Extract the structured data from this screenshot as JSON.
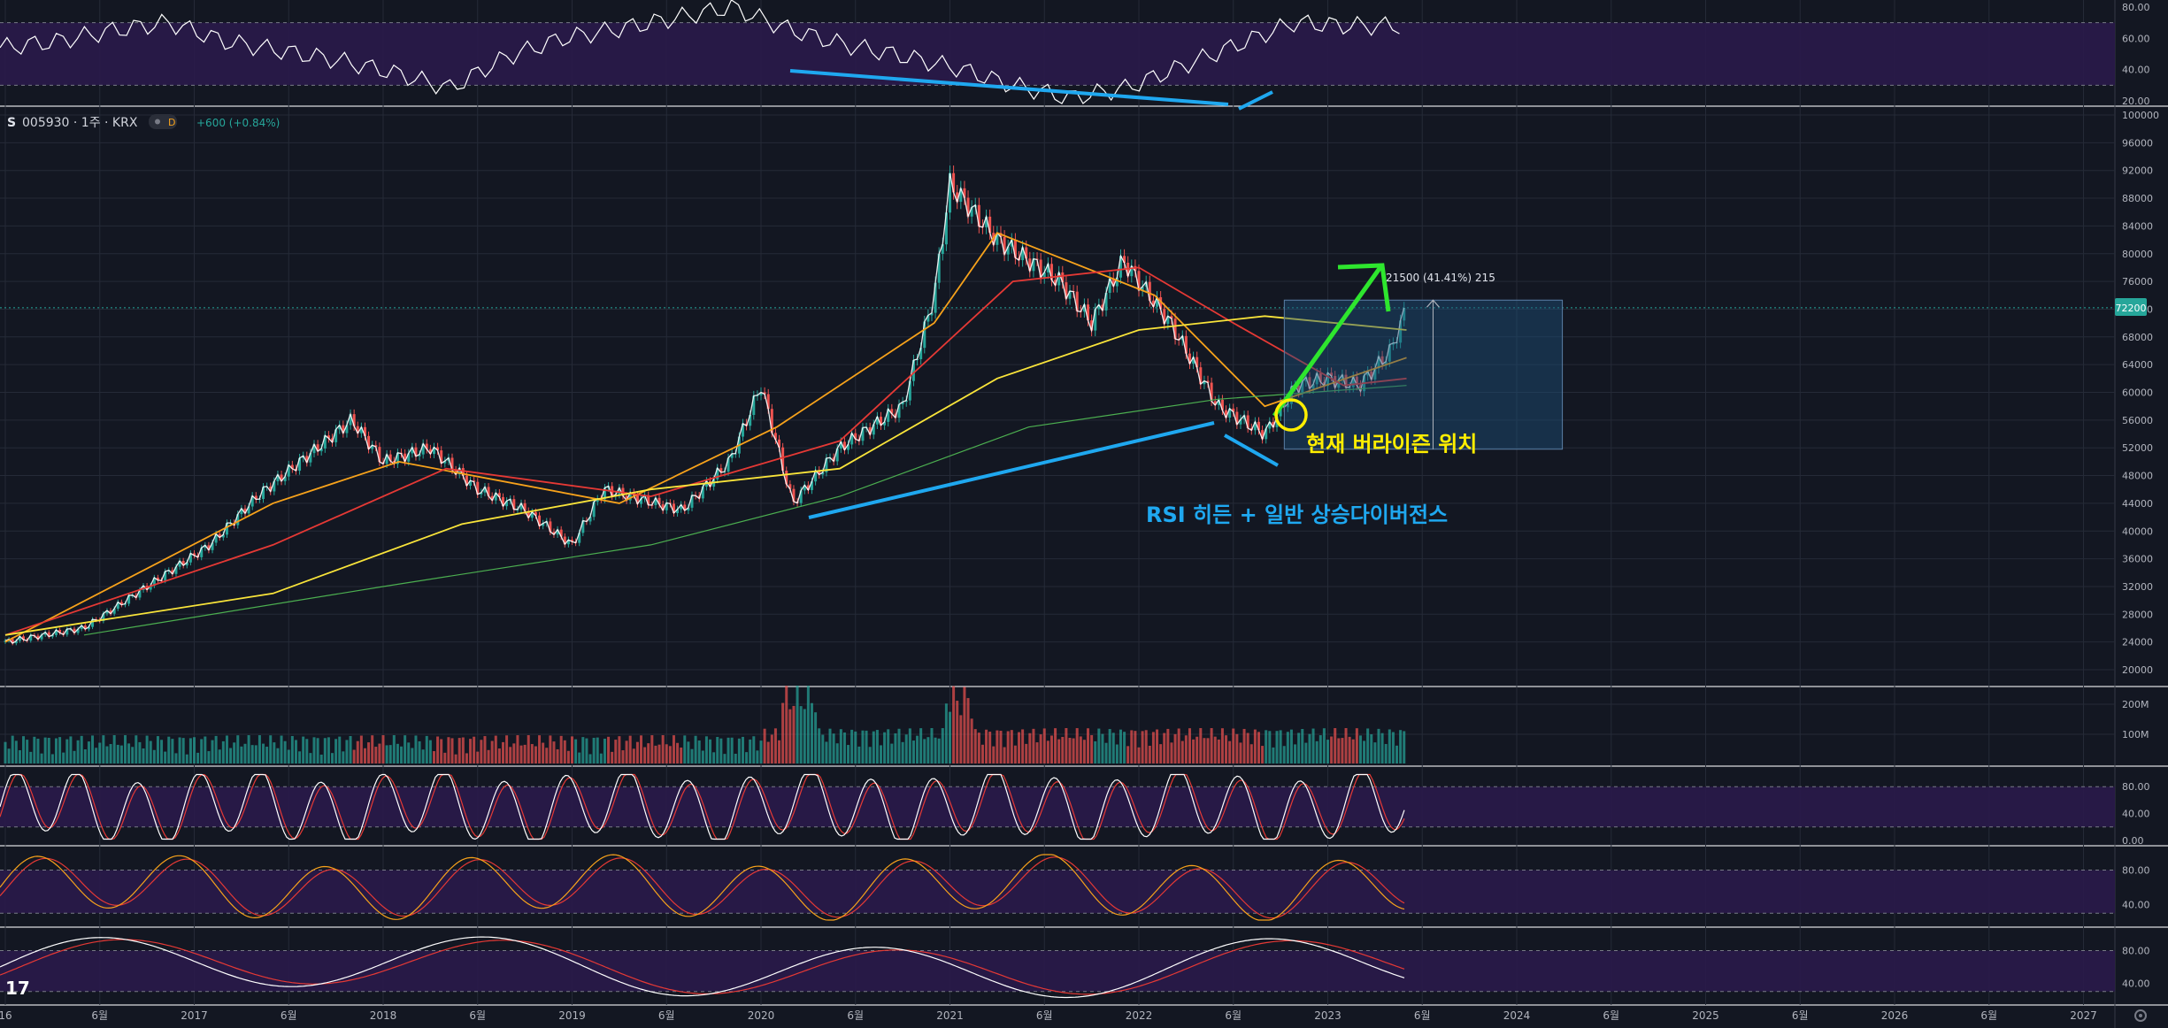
{
  "header": {
    "symbol_glyph": "S",
    "symbol": "005930 · 1주 · KRX",
    "badge": "D",
    "change": "+600 (+0.84%)"
  },
  "annotations": {
    "current_position": "현재 버라이즌 위치",
    "divergence": "RSI 히든 + 일반 상승다이버전스",
    "range_measure": "21500 (41.41%) 215"
  },
  "last_price_label": "72200",
  "logo": "17",
  "colors": {
    "background": "#131722",
    "grid": "#252a37",
    "pane_band": "#2a1a4a",
    "up": "#26a69a",
    "down": "#ef5350",
    "price_line": "#ffffff",
    "ma_orange": "#f7a21b",
    "ma_red": "#e53935",
    "ma_yellow": "#f9e43a",
    "ma_green": "#4caf50",
    "annotation_blue": "#1fa8f0",
    "annotation_green": "#2ee62e",
    "annotation_yellow": "#ffee00",
    "range_box": "#1d4f7a"
  },
  "chart_data": [
    {
      "type": "line",
      "pane": "rsi-top",
      "ylim": [
        20,
        80
      ],
      "y_ticks": [
        "80.00",
        "60.00",
        "40.00",
        "20.00"
      ],
      "series": [
        {
          "values": [
            54,
            58,
            65,
            70,
            58,
            52,
            46,
            38,
            28,
            48,
            60,
            66,
            73,
            80,
            66,
            56,
            49,
            41,
            30,
            22,
            28,
            42,
            56,
            70,
            68
          ]
        }
      ]
    },
    {
      "type": "candlestick",
      "pane": "price",
      "ylim": [
        20000,
        100000
      ],
      "y_ticks": [
        "100000",
        "96000",
        "92000",
        "88000",
        "84000",
        "80000",
        "76000",
        "72000",
        "68000",
        "64000",
        "60000",
        "56000",
        "52000",
        "48000",
        "44000",
        "40000",
        "36000",
        "32000",
        "28000",
        "24000",
        "20000"
      ],
      "x_labels": [
        "16",
        "6월",
        "2017",
        "6월",
        "2018",
        "6월",
        "2019",
        "6월",
        "2020",
        "6월",
        "2021",
        "6월",
        "2022",
        "6월",
        "2023",
        "6월",
        "2024",
        "6월",
        "2025",
        "6월",
        "2026",
        "6월",
        "2027"
      ],
      "last_price": 72200,
      "close": [
        {
          "date": "2016-01",
          "value": 24000
        },
        {
          "date": "2016-06",
          "value": 26000
        },
        {
          "date": "2016-10",
          "value": 32000
        },
        {
          "date": "2017-02",
          "value": 38000
        },
        {
          "date": "2017-05",
          "value": 45000
        },
        {
          "date": "2017-11",
          "value": 56000
        },
        {
          "date": "2018-01",
          "value": 50000
        },
        {
          "date": "2018-04",
          "value": 52000
        },
        {
          "date": "2018-07",
          "value": 46000
        },
        {
          "date": "2018-10",
          "value": 43000
        },
        {
          "date": "2019-01",
          "value": 38000
        },
        {
          "date": "2019-03",
          "value": 46000
        },
        {
          "date": "2019-08",
          "value": 43000
        },
        {
          "date": "2019-11",
          "value": 50000
        },
        {
          "date": "2020-01",
          "value": 61000
        },
        {
          "date": "2020-03",
          "value": 44000
        },
        {
          "date": "2020-06",
          "value": 52000
        },
        {
          "date": "2020-10",
          "value": 58000
        },
        {
          "date": "2020-12",
          "value": 74000
        },
        {
          "date": "2021-01",
          "value": 90000
        },
        {
          "date": "2021-04",
          "value": 82000
        },
        {
          "date": "2021-08",
          "value": 76000
        },
        {
          "date": "2021-10",
          "value": 70000
        },
        {
          "date": "2021-12",
          "value": 79000
        },
        {
          "date": "2022-03",
          "value": 70000
        },
        {
          "date": "2022-06",
          "value": 58000
        },
        {
          "date": "2022-09",
          "value": 54000
        },
        {
          "date": "2022-11",
          "value": 61000
        },
        {
          "date": "2023-01",
          "value": 62000
        },
        {
          "date": "2023-03",
          "value": 61000
        },
        {
          "date": "2023-05",
          "value": 66000
        },
        {
          "date": "2023-06",
          "value": 72200
        }
      ],
      "moving_averages": [
        {
          "color": "orange",
          "values": [
            {
              "date": "2016-01",
              "value": 24000
            },
            {
              "date": "2017-06",
              "value": 44000
            },
            {
              "date": "2018-02",
              "value": 50000
            },
            {
              "date": "2019-04",
              "value": 44000
            },
            {
              "date": "2020-02",
              "value": 55000
            },
            {
              "date": "2020-12",
              "value": 70000
            },
            {
              "date": "2021-04",
              "value": 83000
            },
            {
              "date": "2022-02",
              "value": 74000
            },
            {
              "date": "2022-09",
              "value": 58000
            },
            {
              "date": "2023-06",
              "value": 65000
            }
          ]
        },
        {
          "color": "red",
          "values": [
            {
              "date": "2016-01",
              "value": 25000
            },
            {
              "date": "2017-06",
              "value": 38000
            },
            {
              "date": "2018-05",
              "value": 49000
            },
            {
              "date": "2019-06",
              "value": 45000
            },
            {
              "date": "2020-06",
              "value": 53000
            },
            {
              "date": "2021-05",
              "value": 76000
            },
            {
              "date": "2022-01",
              "value": 78000
            },
            {
              "date": "2022-07",
              "value": 70000
            },
            {
              "date": "2023-02",
              "value": 61000
            },
            {
              "date": "2023-06",
              "value": 62000
            }
          ]
        },
        {
          "color": "yellow",
          "values": [
            {
              "date": "2016-01",
              "value": 25000
            },
            {
              "date": "2017-06",
              "value": 31000
            },
            {
              "date": "2018-06",
              "value": 41000
            },
            {
              "date": "2019-06",
              "value": 46000
            },
            {
              "date": "2020-06",
              "value": 49000
            },
            {
              "date": "2021-04",
              "value": 62000
            },
            {
              "date": "2022-01",
              "value": 69000
            },
            {
              "date": "2022-09",
              "value": 71000
            },
            {
              "date": "2023-06",
              "value": 69000
            }
          ]
        },
        {
          "color": "green",
          "values": [
            {
              "date": "2016-06",
              "value": 25000
            },
            {
              "date": "2018-01",
              "value": 32000
            },
            {
              "date": "2019-06",
              "value": 38000
            },
            {
              "date": "2020-06",
              "value": 45000
            },
            {
              "date": "2021-06",
              "value": 55000
            },
            {
              "date": "2022-06",
              "value": 59000
            },
            {
              "date": "2023-06",
              "value": 61000
            }
          ]
        }
      ]
    },
    {
      "type": "bar",
      "pane": "volume",
      "y_ticks": [
        "200M",
        "100M"
      ],
      "note": "weekly volume bars, red/green"
    },
    {
      "type": "line",
      "pane": "stochastic",
      "ylim": [
        0,
        100
      ],
      "y_ticks": [
        "80.00",
        "40.00",
        "0.00"
      ]
    },
    {
      "type": "line",
      "pane": "stoch-rsi",
      "ylim": [
        20,
        100
      ],
      "y_ticks": [
        "80.00",
        "40.00"
      ]
    },
    {
      "type": "line",
      "pane": "oscillator",
      "ylim": [
        20,
        100
      ],
      "y_ticks": [
        "80.00",
        "40.00"
      ]
    }
  ]
}
